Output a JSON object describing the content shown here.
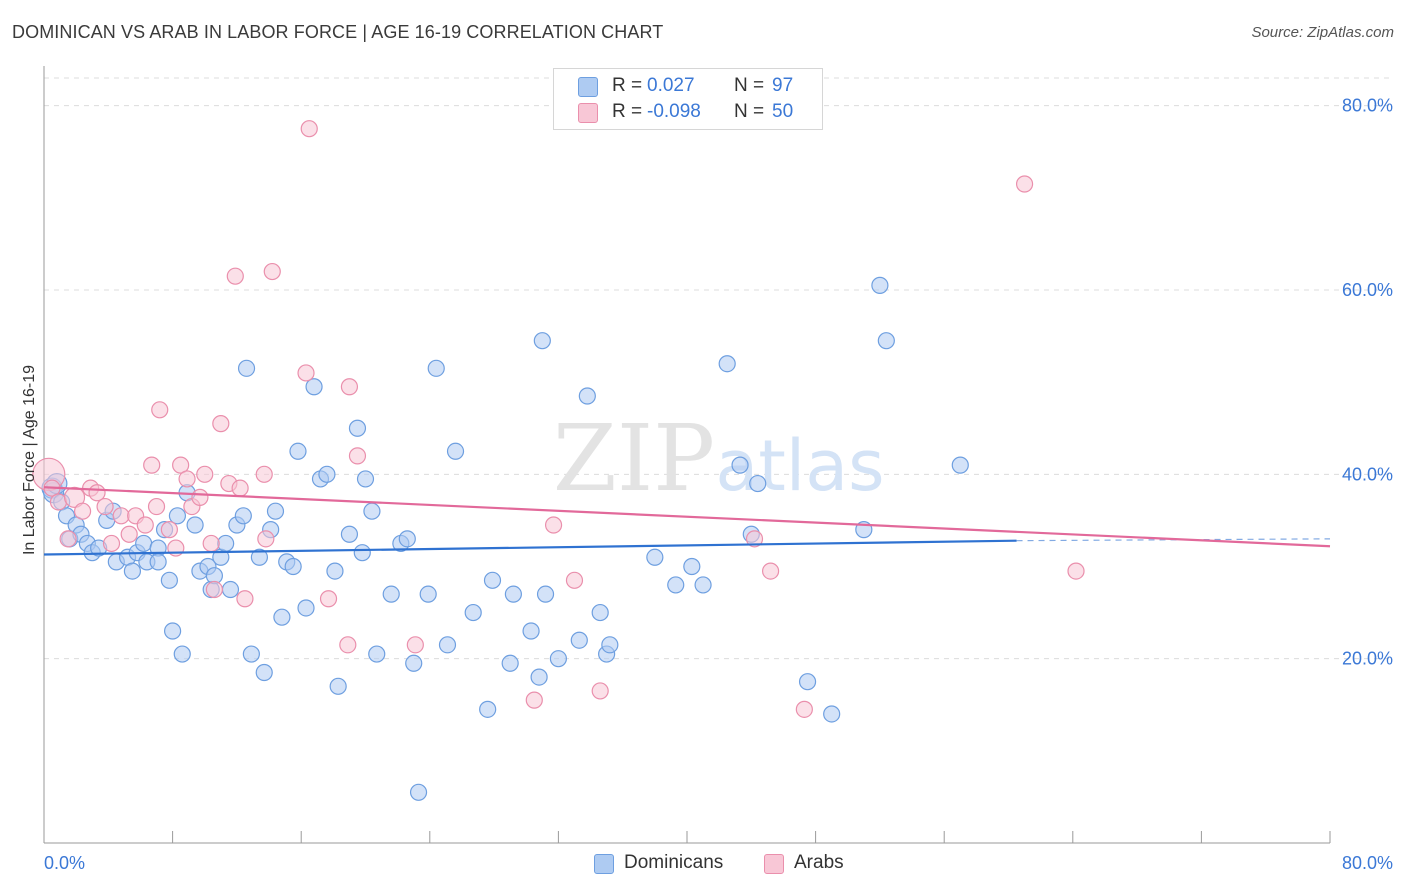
{
  "title": "DOMINICAN VS ARAB IN LABOR FORCE | AGE 16-19 CORRELATION CHART",
  "source": "Source: ZipAtlas.com",
  "watermark": {
    "zip": "ZIP",
    "atlas": "atlas"
  },
  "legend_top": {
    "rows": [
      {
        "r_label": "R =",
        "r_value": "0.027",
        "n_label": "N =",
        "n_value": "97",
        "color": "#aecbf2",
        "border": "#6e9fe0"
      },
      {
        "r_label": "R =",
        "r_value": "-0.098",
        "n_label": "N =",
        "n_value": "50",
        "color": "#f8c7d6",
        "border": "#ea8fac"
      }
    ]
  },
  "legend_bottom": {
    "items": [
      {
        "label": "Dominicans",
        "color": "#aecbf2",
        "border": "#6e9fe0"
      },
      {
        "label": "Arabs",
        "color": "#f8c7d6",
        "border": "#ea8fac"
      }
    ]
  },
  "chart_data": {
    "type": "scatter",
    "title": "DOMINICAN VS ARAB IN LABOR FORCE | AGE 16-19 CORRELATION CHART",
    "xlabel": "",
    "ylabel": "In Labor Force | Age 16-19",
    "xlim": [
      0,
      80
    ],
    "ylim": [
      0,
      83
    ],
    "x_tick_labels": [
      "0.0%",
      "80.0%"
    ],
    "y_ticks": [
      20,
      40,
      60,
      80
    ],
    "y_tick_labels": [
      "20.0%",
      "40.0%",
      "60.0%",
      "80.0%"
    ],
    "grid": true,
    "legend": "top-center",
    "series": [
      {
        "name": "Dominicans",
        "color": "#6e9fe0",
        "fill": "#aecbf2",
        "trend": {
          "x": [
            0,
            60.5
          ],
          "y": [
            31.3,
            32.8
          ],
          "dashed_to": [
            80,
            33.0
          ],
          "color": "#2f72d1"
        },
        "points": [
          [
            0.5,
            38.5
          ],
          [
            0.6,
            38.0
          ],
          [
            0.8,
            39.0
          ],
          [
            1.1,
            37.0
          ],
          [
            1.4,
            35.5
          ],
          [
            1.6,
            33.0
          ],
          [
            2.0,
            34.5
          ],
          [
            2.3,
            33.5
          ],
          [
            2.7,
            32.5
          ],
          [
            3.0,
            31.5
          ],
          [
            3.4,
            32.0
          ],
          [
            3.9,
            35.0
          ],
          [
            4.3,
            36.0
          ],
          [
            4.5,
            30.5
          ],
          [
            5.2,
            31.0
          ],
          [
            5.5,
            29.5
          ],
          [
            5.8,
            31.5
          ],
          [
            6.2,
            32.5
          ],
          [
            6.4,
            30.5
          ],
          [
            7.1,
            32.0
          ],
          [
            7.1,
            30.5
          ],
          [
            7.5,
            34.0
          ],
          [
            7.8,
            28.5
          ],
          [
            8.0,
            23.0
          ],
          [
            8.3,
            35.5
          ],
          [
            8.6,
            20.5
          ],
          [
            8.9,
            38.0
          ],
          [
            9.4,
            34.5
          ],
          [
            9.7,
            29.5
          ],
          [
            10.2,
            30.0
          ],
          [
            10.4,
            27.5
          ],
          [
            10.6,
            29.0
          ],
          [
            11.0,
            31.0
          ],
          [
            11.3,
            32.5
          ],
          [
            11.6,
            27.5
          ],
          [
            12.0,
            34.5
          ],
          [
            12.4,
            35.5
          ],
          [
            12.6,
            51.5
          ],
          [
            12.9,
            20.5
          ],
          [
            13.4,
            31.0
          ],
          [
            13.7,
            18.5
          ],
          [
            14.1,
            34.0
          ],
          [
            14.4,
            36.0
          ],
          [
            14.8,
            24.5
          ],
          [
            15.1,
            30.5
          ],
          [
            15.5,
            30.0
          ],
          [
            15.8,
            42.5
          ],
          [
            16.3,
            25.5
          ],
          [
            16.8,
            49.5
          ],
          [
            17.2,
            39.5
          ],
          [
            17.6,
            40.0
          ],
          [
            18.1,
            29.5
          ],
          [
            18.3,
            17.0
          ],
          [
            19.0,
            33.5
          ],
          [
            19.5,
            45.0
          ],
          [
            19.8,
            31.5
          ],
          [
            20.0,
            39.5
          ],
          [
            20.4,
            36.0
          ],
          [
            20.7,
            20.5
          ],
          [
            21.6,
            27.0
          ],
          [
            22.2,
            32.5
          ],
          [
            22.6,
            33.0
          ],
          [
            23.0,
            19.5
          ],
          [
            23.3,
            5.5
          ],
          [
            23.9,
            27.0
          ],
          [
            24.4,
            51.5
          ],
          [
            25.1,
            21.5
          ],
          [
            25.6,
            42.5
          ],
          [
            26.7,
            25.0
          ],
          [
            27.6,
            14.5
          ],
          [
            27.9,
            28.5
          ],
          [
            29.0,
            19.5
          ],
          [
            29.2,
            27.0
          ],
          [
            30.3,
            23.0
          ],
          [
            30.8,
            18.0
          ],
          [
            31.0,
            54.5
          ],
          [
            31.2,
            27.0
          ],
          [
            32.0,
            20.0
          ],
          [
            33.3,
            22.0
          ],
          [
            33.8,
            48.5
          ],
          [
            34.6,
            25.0
          ],
          [
            35.0,
            20.5
          ],
          [
            35.2,
            21.5
          ],
          [
            38.0,
            31.0
          ],
          [
            39.3,
            28.0
          ],
          [
            40.3,
            30.0
          ],
          [
            41.0,
            28.0
          ],
          [
            42.5,
            52.0
          ],
          [
            43.3,
            41.0
          ],
          [
            44.0,
            33.5
          ],
          [
            44.4,
            39.0
          ],
          [
            47.5,
            17.5
          ],
          [
            49.0,
            14.0
          ],
          [
            51.0,
            34.0
          ],
          [
            52.0,
            60.5
          ],
          [
            52.4,
            54.5
          ],
          [
            57.0,
            41.0
          ]
        ]
      },
      {
        "name": "Arabs",
        "color": "#ea8fac",
        "fill": "#f8c7d6",
        "trend": {
          "x": [
            0,
            80
          ],
          "y": [
            38.6,
            32.2
          ],
          "color": "#e2699a"
        },
        "points": [
          [
            0.3,
            40.0
          ],
          [
            0.5,
            38.5
          ],
          [
            0.9,
            37.0
          ],
          [
            1.5,
            33.0
          ],
          [
            1.9,
            37.5
          ],
          [
            2.4,
            36.0
          ],
          [
            2.9,
            38.5
          ],
          [
            3.3,
            38.0
          ],
          [
            3.8,
            36.5
          ],
          [
            4.2,
            32.5
          ],
          [
            4.8,
            35.5
          ],
          [
            5.3,
            33.5
          ],
          [
            5.7,
            35.5
          ],
          [
            6.3,
            34.5
          ],
          [
            6.7,
            41.0
          ],
          [
            7.0,
            36.5
          ],
          [
            7.2,
            47.0
          ],
          [
            7.8,
            34.0
          ],
          [
            8.2,
            32.0
          ],
          [
            8.5,
            41.0
          ],
          [
            8.9,
            39.5
          ],
          [
            9.2,
            36.5
          ],
          [
            9.7,
            37.5
          ],
          [
            10.0,
            40.0
          ],
          [
            10.4,
            32.5
          ],
          [
            10.6,
            27.5
          ],
          [
            11.0,
            45.5
          ],
          [
            11.5,
            39.0
          ],
          [
            11.9,
            61.5
          ],
          [
            12.2,
            38.5
          ],
          [
            12.5,
            26.5
          ],
          [
            13.7,
            40.0
          ],
          [
            13.8,
            33.0
          ],
          [
            14.2,
            62.0
          ],
          [
            16.3,
            51.0
          ],
          [
            16.5,
            77.5
          ],
          [
            17.7,
            26.5
          ],
          [
            18.9,
            21.5
          ],
          [
            19.0,
            49.5
          ],
          [
            19.5,
            42.0
          ],
          [
            23.1,
            21.5
          ],
          [
            30.5,
            15.5
          ],
          [
            31.7,
            34.5
          ],
          [
            33.0,
            28.5
          ],
          [
            34.6,
            16.5
          ],
          [
            44.2,
            33.0
          ],
          [
            45.2,
            29.5
          ],
          [
            47.3,
            14.5
          ],
          [
            61.0,
            71.5
          ],
          [
            64.2,
            29.5
          ]
        ]
      }
    ]
  }
}
